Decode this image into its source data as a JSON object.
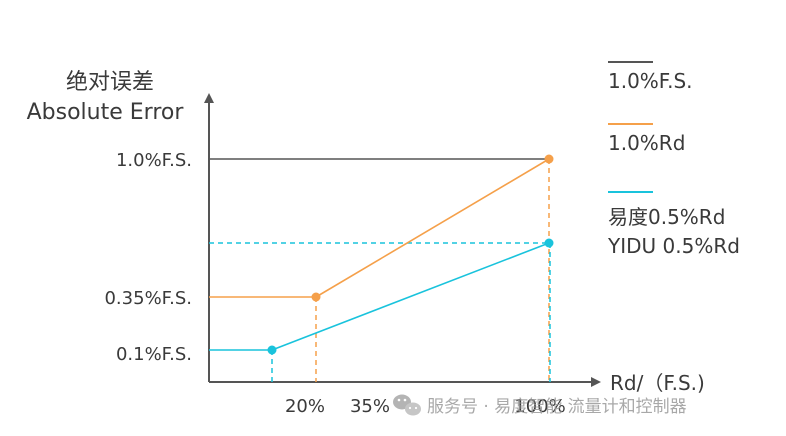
{
  "chart_data": {
    "type": "line",
    "ylabel": [
      "绝对误差",
      "Absolute Error"
    ],
    "xlabel": "Rd/（F.S.)",
    "x_tick_labels": [
      "20%",
      "35%",
      "100%"
    ],
    "y_tick_labels": [
      "1.0%F.S.",
      "0.35%F.S.",
      "0.1%F.S."
    ],
    "series": [
      {
        "name": "1.0%F.S.",
        "color": "#555555",
        "points": [
          [
            0,
            1.0
          ],
          [
            100,
            1.0
          ]
        ],
        "markers": []
      },
      {
        "name": "1.0%Rd",
        "color": "#f5a04a",
        "points": [
          [
            0,
            0.35
          ],
          [
            35,
            0.35
          ],
          [
            100,
            1.0
          ]
        ],
        "markers": [
          [
            35,
            0.35
          ],
          [
            100,
            1.0
          ]
        ]
      },
      {
        "name": "易度0.5%Rd",
        "name_line2": "YIDU 0.5%Rd",
        "color": "#19c3dc",
        "points": [
          [
            0,
            0.1
          ],
          [
            20,
            0.1
          ],
          [
            100,
            0.5
          ]
        ],
        "markers": [
          [
            20,
            0.1
          ],
          [
            100,
            0.5
          ]
        ]
      }
    ],
    "grid": false,
    "legend": "right"
  },
  "watermark": {
    "icon": "wechat-icon",
    "text": "服务号 · 易度智能 流量计和控制器"
  }
}
